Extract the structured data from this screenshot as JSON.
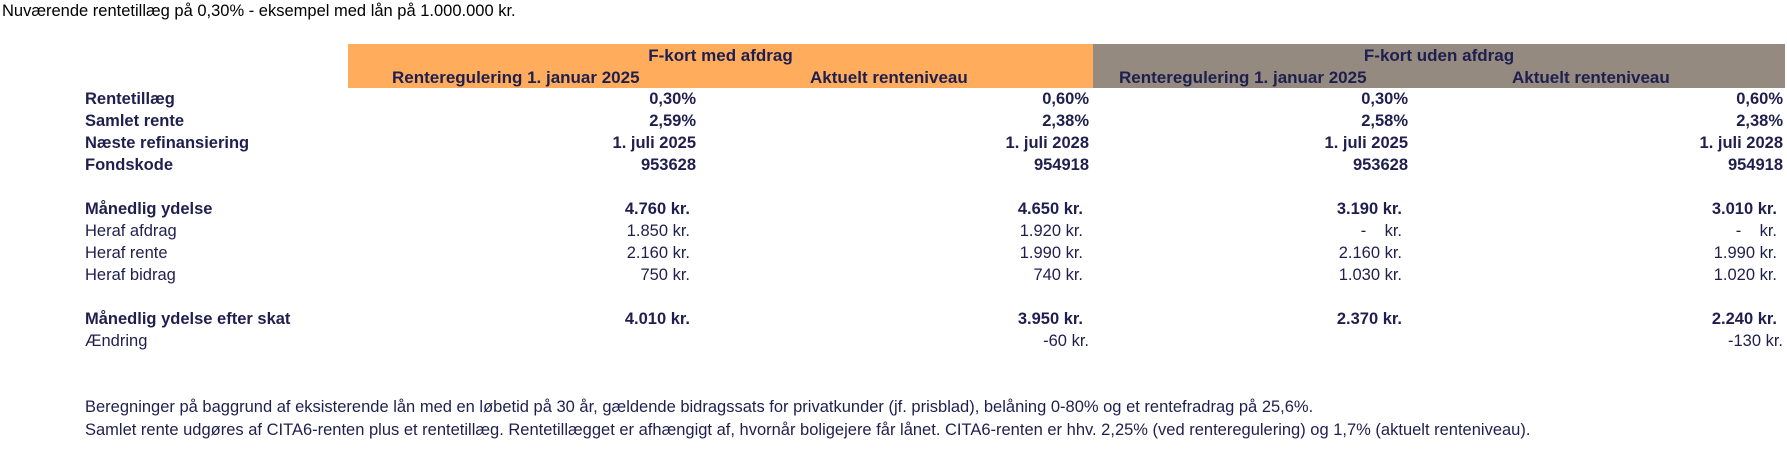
{
  "title": "Nuværende rentetillæg på 0,30% - eksempel med lån på 1.000.000 kr.",
  "colors": {
    "orange_header": "#ffad5c",
    "gray_header": "#948a80",
    "text_navy": "#1f1f4f"
  },
  "groups": [
    {
      "label": "F-kort med afdrag",
      "sub": [
        "Renteregulering 1. januar 2025",
        "Aktuelt renteniveau"
      ]
    },
    {
      "label": "F-kort uden afdrag",
      "sub": [
        "Renteregulering 1. januar 2025",
        "Aktuelt renteniveau"
      ]
    }
  ],
  "rows": [
    {
      "label": "Rentetillæg",
      "bold": true,
      "values": [
        "0,30%",
        "0,60%",
        "0,30%",
        "0,60%"
      ]
    },
    {
      "label": "Samlet rente",
      "bold": true,
      "values": [
        "2,59%",
        "2,38%",
        "2,58%",
        "2,38%"
      ]
    },
    {
      "label": "Næste refinansiering",
      "bold": true,
      "values": [
        "1. juli 2025",
        "1. juli 2028",
        "1. juli 2025",
        "1. juli 2028"
      ]
    },
    {
      "label": "Fondskode",
      "bold": true,
      "values": [
        "953628",
        "954918",
        "953628",
        "954918"
      ]
    },
    {
      "label": "Månedlig ydelse",
      "bold": true,
      "values": [
        "4.760 kr.",
        "4.650 kr.",
        "3.190 kr.",
        "3.010 kr."
      ]
    },
    {
      "label": "Heraf afdrag",
      "bold": false,
      "values": [
        "1.850 kr.",
        "1.920 kr.",
        "-    kr.",
        "-    kr."
      ]
    },
    {
      "label": "Heraf rente",
      "bold": false,
      "values": [
        "2.160 kr.",
        "1.990 kr.",
        "2.160 kr.",
        "1.990 kr."
      ]
    },
    {
      "label": "Heraf bidrag",
      "bold": false,
      "values": [
        "750 kr.",
        "740 kr.",
        "1.030 kr.",
        "1.020 kr."
      ]
    },
    {
      "label": "Månedlig ydelse efter skat",
      "bold": true,
      "values": [
        "4.010 kr.",
        "3.950 kr.",
        "2.370 kr.",
        "2.240 kr."
      ]
    },
    {
      "label": "Ændring",
      "bold": false,
      "values": [
        "",
        "-60 kr.",
        "",
        "-130 kr."
      ]
    }
  ],
  "notes": [
    "Beregninger på baggrund af eksisterende lån med en løbetid på 30 år, gældende bidragssats for privatkunder (jf. prisblad), belåning 0-80% og et rentefradrag på 25,6%.",
    "Samlet rente udgøres af CITA6-renten plus et rentetillæg. Rentetillægget er afhængigt af, hvornår boligejere får lånet. CITA6-renten er hhv. 2,25% (ved renteregulering) og 1,7% (aktuelt renteniveau)."
  ]
}
